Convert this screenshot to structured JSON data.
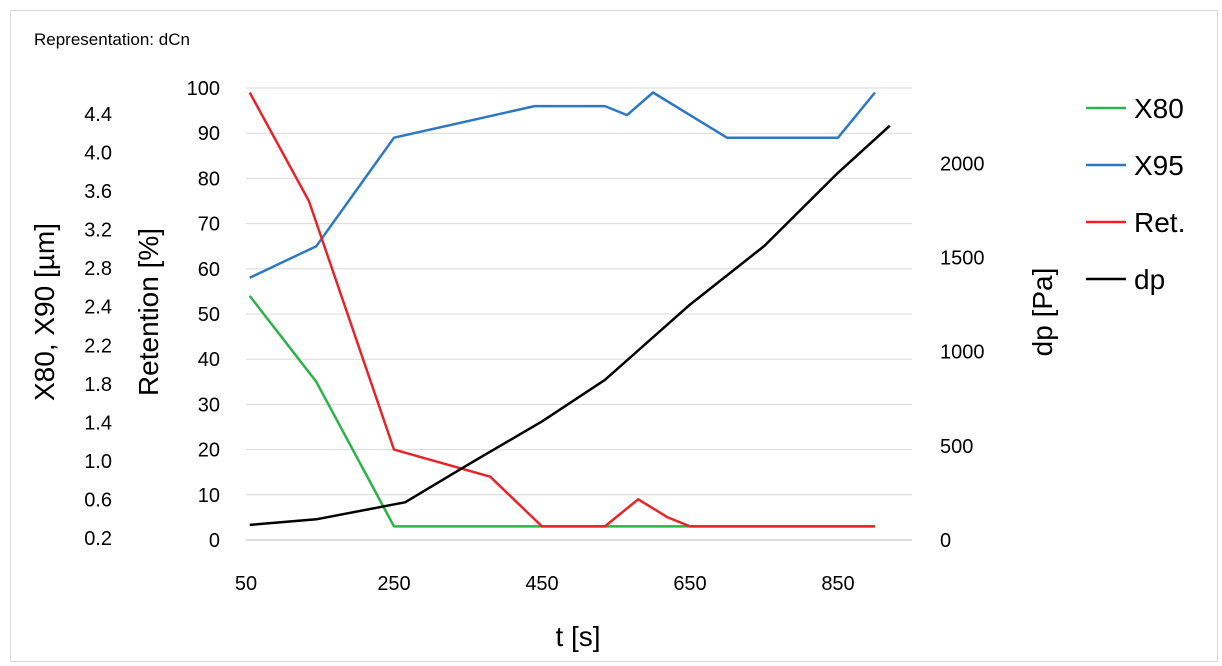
{
  "header": {
    "representation": "Representation: dCn"
  },
  "chart_data": {
    "type": "line",
    "xlabel": "t [s]",
    "ylabel_left_outer": "X80, X90 [µm]",
    "ylabel_left": "Retention [%]",
    "ylabel_right": "dp [Pa]",
    "x_ticks": [
      50,
      250,
      450,
      650,
      850
    ],
    "xlim": [
      50,
      950
    ],
    "y_left_ticks": [
      0,
      10,
      20,
      30,
      40,
      50,
      60,
      70,
      80,
      90,
      100
    ],
    "ylim_left": [
      0,
      100
    ],
    "y_right_ticks": [
      0,
      500,
      1000,
      1500,
      2000
    ],
    "ylim_right": [
      0,
      2400
    ],
    "y_outer_ticks": [
      "4.4",
      "4.0",
      "3.6",
      "3.2",
      "2.8",
      "2.4",
      "2.2",
      "1.8",
      "1.4",
      "1.0",
      "0.6",
      "0.2"
    ],
    "grid": true,
    "legend_position": "right",
    "series": [
      {
        "name": "X80",
        "color": "#2db34a",
        "axis": "left",
        "x": [
          55,
          145,
          250,
          350,
          450,
          550,
          650,
          750,
          850,
          900
        ],
        "y": [
          54,
          35,
          3,
          3,
          3,
          3,
          3,
          3,
          3,
          3
        ]
      },
      {
        "name": "X95",
        "color": "#2e78c2",
        "axis": "left",
        "x": [
          55,
          145,
          250,
          440,
          535,
          565,
          600,
          700,
          760,
          850,
          900
        ],
        "y": [
          58,
          65,
          89,
          96,
          96,
          94,
          99,
          89,
          89,
          89,
          99
        ]
      },
      {
        "name": "Ret.",
        "color": "#e8232a",
        "axis": "left",
        "x": [
          55,
          135,
          250,
          380,
          450,
          535,
          580,
          620,
          650,
          750,
          900
        ],
        "y": [
          99,
          75,
          20,
          14,
          3,
          3,
          9,
          5,
          3,
          3,
          3
        ]
      },
      {
        "name": "dp",
        "color": "#000000",
        "axis": "right",
        "x": [
          55,
          145,
          265,
          350,
          450,
          535,
          650,
          750,
          850,
          920
        ],
        "y": [
          80,
          110,
          200,
          400,
          630,
          850,
          1250,
          1560,
          1950,
          2200
        ]
      }
    ]
  }
}
